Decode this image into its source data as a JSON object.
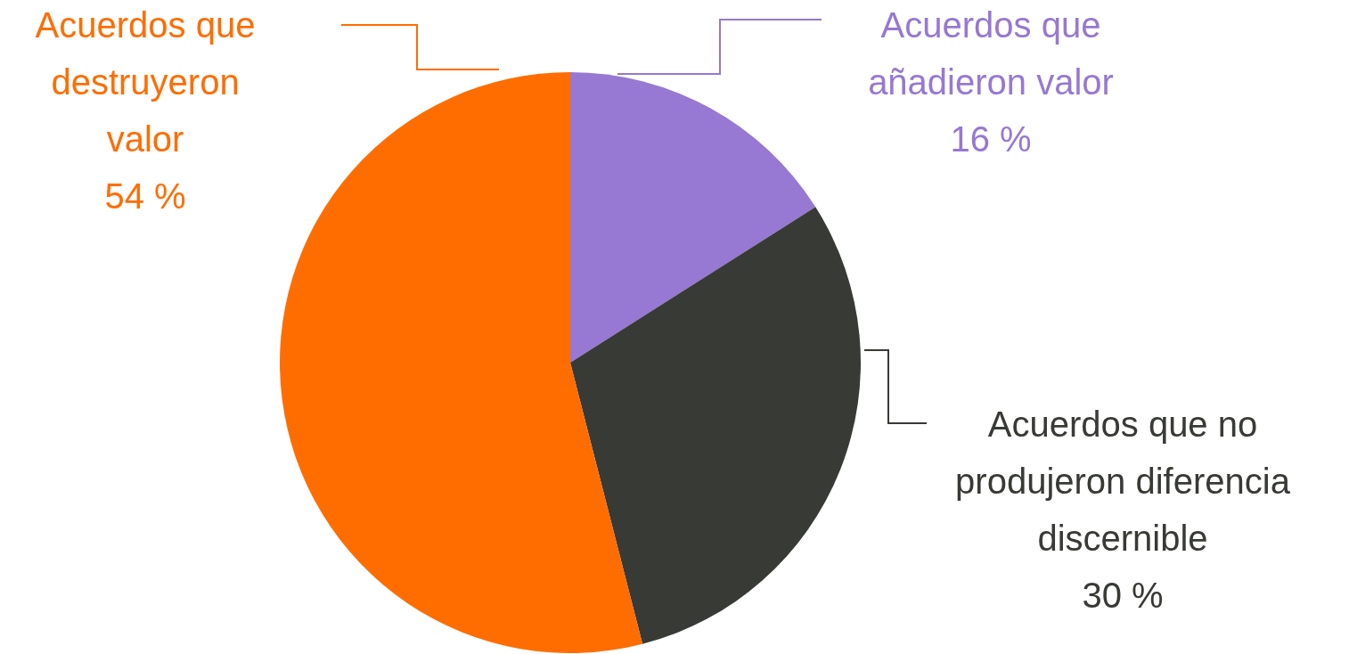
{
  "chart_data": {
    "type": "pie",
    "categories": [
      "Acuerdos que añadieron valor",
      "Acuerdos que no produjeron diferencia discernible",
      "Acuerdos que destruyeron valor"
    ],
    "values": [
      16,
      30,
      54
    ],
    "colors": [
      "#9778d3",
      "#383a35",
      "#ff6d00"
    ],
    "value_labels": [
      "16 %",
      "30 %",
      "54 %"
    ]
  }
}
